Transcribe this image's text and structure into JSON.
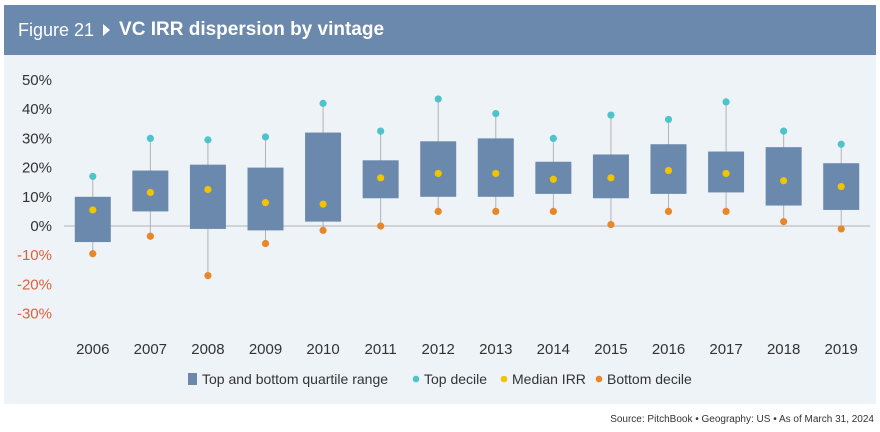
{
  "header": {
    "figure_number": "Figure 21",
    "title": "VC IRR dispersion by vintage",
    "background": "#6b88ad"
  },
  "source": "Source: PitchBook • Geography: US • As of March 31, 2024",
  "colors": {
    "box": "#6b88ad",
    "top_decile": "#4fc3cc",
    "median": "#f2c300",
    "bottom_decile": "#e8862a",
    "whisker": "#b3b3b3",
    "zero_line": "#b3b3b3",
    "negative_tick": "#e0603a",
    "positive_tick": "#333333",
    "panel": "#eef3f8"
  },
  "chart_data": {
    "type": "box",
    "title": "VC IRR dispersion by vintage",
    "xlabel": "",
    "ylabel": "",
    "ylim": [
      -30,
      50
    ],
    "y_ticks": [
      -30,
      -20,
      -10,
      0,
      10,
      20,
      30,
      40,
      50
    ],
    "y_tick_labels": [
      "-30%",
      "-20%",
      "-10%",
      "0%",
      "10%",
      "20%",
      "30%",
      "40%",
      "50%"
    ],
    "grid": false,
    "legend_position": "bottom",
    "legend": [
      "Top and bottom quartile range",
      "Top decile",
      "Median IRR",
      "Bottom decile"
    ],
    "categories": [
      "2006",
      "2007",
      "2008",
      "2009",
      "2010",
      "2011",
      "2012",
      "2013",
      "2014",
      "2015",
      "2016",
      "2017",
      "2018",
      "2019"
    ],
    "series": [
      {
        "name": "Top and bottom quartile range",
        "low": [
          -5.5,
          5,
          -1,
          -1.5,
          1.5,
          9.5,
          10,
          10,
          11,
          9.5,
          11,
          11.5,
          7,
          5.5
        ],
        "high": [
          10,
          19,
          21,
          20,
          32,
          22.5,
          29,
          30,
          22,
          24.5,
          28,
          25.5,
          27,
          21.5
        ]
      },
      {
        "name": "Top decile",
        "values": [
          17,
          30,
          29.5,
          30.5,
          42,
          32.5,
          43.5,
          38.5,
          30,
          38,
          36.5,
          42.5,
          32.5,
          28
        ]
      },
      {
        "name": "Median IRR",
        "values": [
          5.5,
          11.5,
          12.5,
          8,
          7.5,
          16.5,
          18,
          18,
          16,
          16.5,
          19,
          18,
          15.5,
          13.5
        ]
      },
      {
        "name": "Bottom decile",
        "values": [
          -9.5,
          -3.5,
          -17,
          -6,
          -1.5,
          0,
          5,
          5,
          5,
          0.5,
          5,
          5,
          1.5,
          -1
        ]
      }
    ]
  }
}
